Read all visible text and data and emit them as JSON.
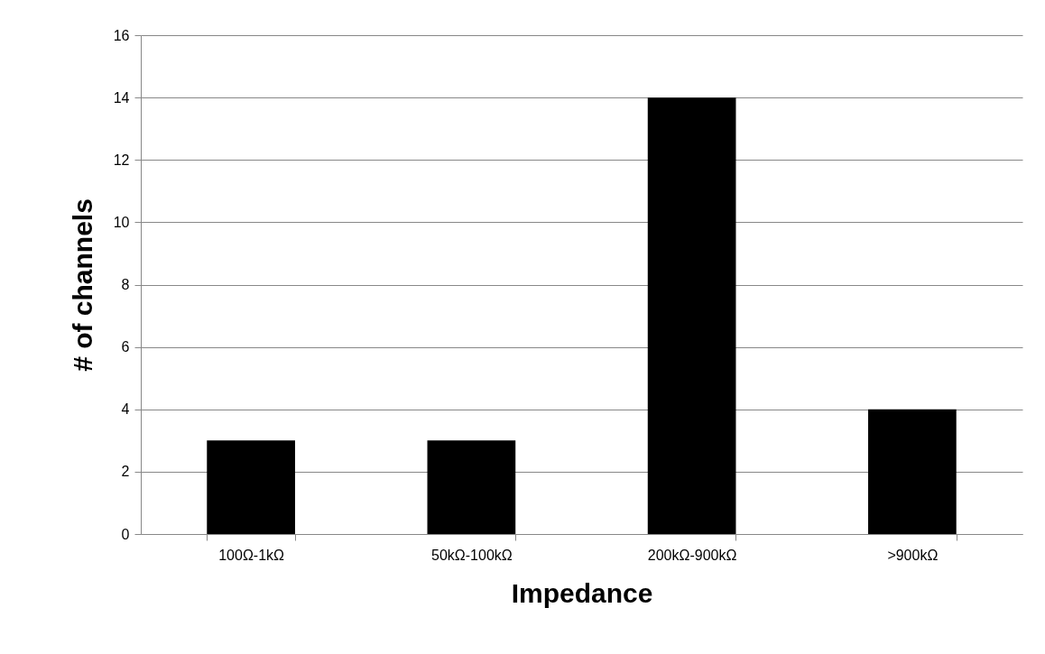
{
  "chart_data": {
    "type": "bar",
    "xlabel": "Impedance",
    "ylabel": "# of channels",
    "categories": [
      "100Ω-1kΩ",
      "50kΩ-100kΩ",
      "200kΩ-900kΩ",
      ">900kΩ"
    ],
    "values": [
      3,
      3,
      14,
      4
    ],
    "color": "#000000",
    "ylim": [
      0,
      16
    ],
    "yticks": [
      0,
      2,
      4,
      6,
      8,
      10,
      12,
      14,
      16
    ],
    "grid": "y"
  }
}
